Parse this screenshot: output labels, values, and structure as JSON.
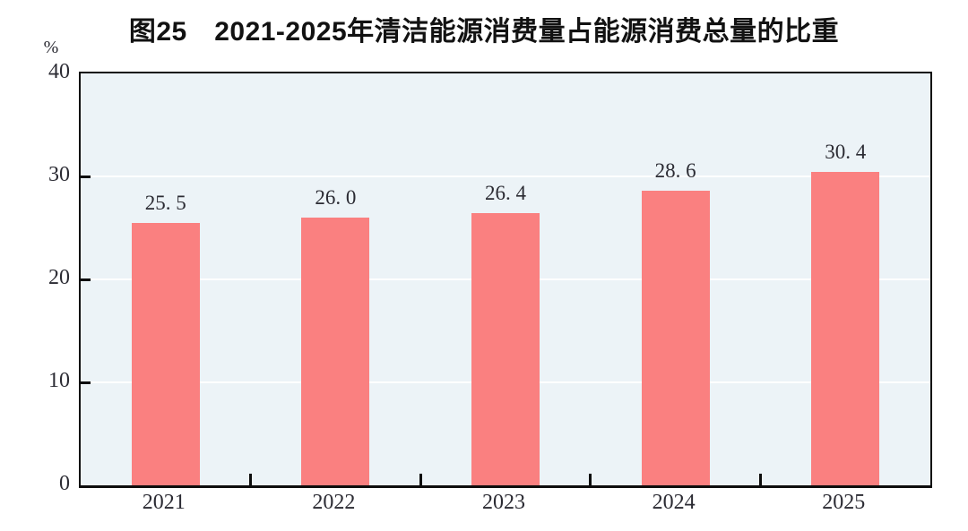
{
  "header": {
    "title": "图25　2021-2025年清洁能源消费量占能源消费总量的比重",
    "unit_label": "%"
  },
  "chart_data": {
    "type": "bar",
    "title": "图25　2021-2025年清洁能源消费量占能源消费总量的比重",
    "categories": [
      "2021",
      "2022",
      "2023",
      "2024",
      "2025"
    ],
    "values": [
      25.5,
      26.0,
      26.4,
      28.6,
      30.4
    ],
    "value_labels": [
      "25. 5",
      "26. 0",
      "26. 4",
      "28. 6",
      "30. 4"
    ],
    "xlabel": "",
    "ylabel": "%",
    "ylim": [
      0,
      40
    ],
    "yticks": [
      0,
      10,
      20,
      30,
      40
    ],
    "gridline_values": [
      10,
      20,
      30
    ],
    "grid": "horizontal",
    "legend": "none",
    "colors": {
      "bar": "#fa8080",
      "plot_background": "#ecf3f7",
      "gridline": "#ffffff",
      "axis": "#0d0d0d",
      "text": "#2b2b33"
    }
  }
}
